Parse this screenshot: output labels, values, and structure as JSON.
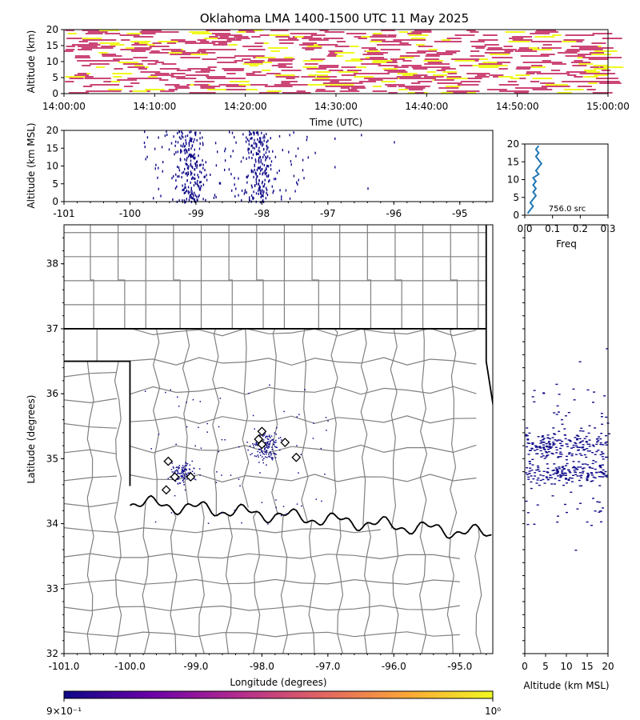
{
  "title": "Oklahoma LMA 1400-1500 UTC 11 May 2025",
  "colors": {
    "time_src_low": "#cc4778",
    "time_src_high": "#f0f921",
    "src_dot": "#0d0887",
    "hist_line": "#1f77b4",
    "county_line": "#808080",
    "state_line": "#000000",
    "colorbar_stops": [
      "#0d0887",
      "#6a00a8",
      "#b12a90",
      "#e16462",
      "#fca636",
      "#f0f921"
    ]
  },
  "chart_data": [
    {
      "id": "time_height",
      "type": "heatmap",
      "xlabel": "Time (UTC)",
      "ylabel": "Altitude (km)",
      "xticks": [
        "14:00:00",
        "14:10:00",
        "14:20:00",
        "14:30:00",
        "14:40:00",
        "14:50:00",
        "15:00:00"
      ],
      "yticks": [
        0,
        5,
        10,
        15,
        20
      ],
      "xlim_minutes": [
        0,
        60
      ],
      "ylim": [
        0,
        20
      ]
    },
    {
      "id": "lon_alt",
      "type": "scatter",
      "ylabel": "Altitude (km MSL)",
      "xticks": [
        -101,
        -100,
        -99,
        -98,
        -97,
        -96,
        -95
      ],
      "yticks": [
        0,
        5,
        10,
        15,
        20
      ],
      "xlim": [
        -101,
        -94.5
      ],
      "ylim": [
        0,
        20
      ]
    },
    {
      "id": "alt_hist",
      "type": "line",
      "xlabel": "Freq",
      "annotation": "756.0 src",
      "xticks": [
        "0.0",
        "0.1",
        "0.2",
        "0.3"
      ],
      "yticks": [
        0,
        5,
        10,
        15,
        20
      ],
      "xlim": [
        0,
        0.3
      ],
      "ylim": [
        0,
        20
      ],
      "profile": [
        {
          "alt": 0.5,
          "freq": 0.01
        },
        {
          "alt": 1.5,
          "freq": 0.02
        },
        {
          "alt": 2.5,
          "freq": 0.03
        },
        {
          "alt": 3.5,
          "freq": 0.02
        },
        {
          "alt": 4.5,
          "freq": 0.03
        },
        {
          "alt": 5.5,
          "freq": 0.04
        },
        {
          "alt": 6.5,
          "freq": 0.03
        },
        {
          "alt": 7.5,
          "freq": 0.04
        },
        {
          "alt": 8.5,
          "freq": 0.03
        },
        {
          "alt": 9.5,
          "freq": 0.04
        },
        {
          "alt": 10.5,
          "freq": 0.03
        },
        {
          "alt": 11.5,
          "freq": 0.05
        },
        {
          "alt": 12.5,
          "freq": 0.04
        },
        {
          "alt": 13.5,
          "freq": 0.05
        },
        {
          "alt": 14.5,
          "freq": 0.06
        },
        {
          "alt": 15.5,
          "freq": 0.05
        },
        {
          "alt": 16.5,
          "freq": 0.04
        },
        {
          "alt": 17.5,
          "freq": 0.05
        },
        {
          "alt": 18.5,
          "freq": 0.04
        },
        {
          "alt": 19.5,
          "freq": 0.05
        }
      ]
    },
    {
      "id": "plan_view",
      "type": "scatter",
      "xlabel": "Longitude (degrees)",
      "ylabel": "Latitude (degrees)",
      "xticks": [
        "-101.0",
        "-100.0",
        "-99.0",
        "-98.0",
        "-97.0",
        "-96.0",
        "-95.0"
      ],
      "yticks": [
        32,
        33,
        34,
        35,
        36,
        37,
        38
      ],
      "xlim": [
        -101,
        -94.5
      ],
      "ylim": [
        32,
        38.6
      ],
      "stations": [
        {
          "lon": -99.42,
          "lat": 34.96
        },
        {
          "lon": -99.32,
          "lat": 34.72
        },
        {
          "lon": -99.08,
          "lat": 34.72
        },
        {
          "lon": -99.45,
          "lat": 34.52
        },
        {
          "lon": -98.0,
          "lat": 35.42
        },
        {
          "lon": -98.05,
          "lat": 35.3
        },
        {
          "lon": -98.0,
          "lat": 35.22
        },
        {
          "lon": -97.65,
          "lat": 35.25
        },
        {
          "lon": -97.48,
          "lat": 35.02
        }
      ]
    },
    {
      "id": "alt_lat",
      "type": "scatter",
      "xlabel": "Altitude (km MSL)",
      "xticks": [
        0,
        5,
        10,
        15,
        20
      ],
      "xlim": [
        0,
        20
      ],
      "ylim": [
        32,
        38.6
      ]
    },
    {
      "id": "colorbar",
      "type": "heatmap",
      "ticks": [
        {
          "value": 0.9,
          "label": "9×10⁻¹"
        },
        {
          "value": 1.0,
          "label": "10⁰"
        }
      ],
      "range": [
        0.9,
        1.0
      ]
    }
  ]
}
